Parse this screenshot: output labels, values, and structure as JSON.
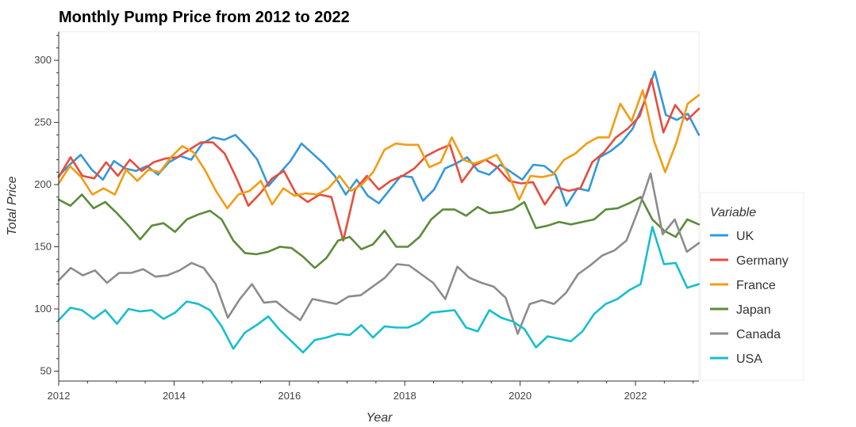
{
  "chart_data": {
    "type": "line",
    "title": "Monthly Pump Price from 2012 to 2022",
    "xlabel": "Year",
    "ylabel": "Total Price",
    "xlim": [
      2012,
      2023.1
    ],
    "ylim": [
      42,
      323
    ],
    "xticks": [
      2012,
      2014,
      2016,
      2018,
      2020,
      2022
    ],
    "yticks": [
      50,
      100,
      150,
      200,
      250,
      300
    ],
    "grid": false,
    "legend": {
      "title": "Variable",
      "placement": "right"
    },
    "x_start": 2012,
    "x_step": 0.25,
    "series": [
      {
        "name": "UK",
        "color": "#3498db",
        "values": [
          207,
          216,
          224,
          212,
          204,
          219,
          213,
          211,
          215,
          208,
          218,
          223,
          220,
          233,
          238,
          236,
          240,
          231,
          220,
          199,
          209,
          219,
          233,
          225,
          217,
          207,
          192,
          204,
          191,
          185,
          196,
          207,
          206,
          187,
          196,
          213,
          217,
          222,
          211,
          208,
          216,
          210,
          204,
          216,
          215,
          208,
          183,
          197,
          195,
          222,
          227,
          234,
          245,
          265,
          291,
          256,
          252,
          257,
          240
        ]
      },
      {
        "name": "Germany",
        "color": "#e74c3c",
        "values": [
          206,
          222,
          207,
          205,
          218,
          207,
          220,
          211,
          218,
          221,
          222,
          228,
          234,
          234,
          225,
          205,
          183,
          193,
          205,
          211,
          193,
          186,
          192,
          190,
          155,
          196,
          207,
          196,
          203,
          207,
          213,
          223,
          228,
          232,
          202,
          215,
          220,
          214,
          203,
          201,
          202,
          184,
          198,
          195,
          197,
          218,
          226,
          238,
          245,
          255,
          285,
          242,
          264,
          252,
          261
        ]
      },
      {
        "name": "France",
        "color": "#f39c12",
        "values": [
          201,
          215,
          206,
          192,
          197,
          192,
          212,
          203,
          212,
          210,
          222,
          231,
          226,
          212,
          195,
          181,
          192,
          195,
          203,
          184,
          197,
          191,
          193,
          192,
          197,
          207,
          195,
          200,
          210,
          228,
          233,
          232,
          232,
          214,
          218,
          238,
          220,
          217,
          220,
          224,
          209,
          188,
          207,
          206,
          208,
          220,
          225,
          233,
          238,
          238,
          265,
          251,
          276,
          235,
          210,
          234,
          265,
          272
        ]
      },
      {
        "name": "Japan",
        "color": "#5b8c3a",
        "values": [
          188,
          183,
          192,
          181,
          186,
          177,
          167,
          156,
          167,
          169,
          162,
          172,
          176,
          179,
          172,
          155,
          145,
          144,
          146,
          150,
          149,
          142,
          133,
          141,
          155,
          158,
          148,
          152,
          163,
          150,
          150,
          158,
          172,
          180,
          180,
          175,
          182,
          177,
          178,
          180,
          186,
          165,
          167,
          170,
          168,
          170,
          172,
          180,
          181,
          185,
          190,
          172,
          163,
          158,
          172,
          168
        ]
      },
      {
        "name": "Canada",
        "color": "#8c8c8c",
        "values": [
          123,
          133,
          127,
          131,
          121,
          129,
          129,
          132,
          126,
          127,
          131,
          137,
          133,
          120,
          93,
          108,
          120,
          105,
          106,
          98,
          91,
          108,
          106,
          104,
          110,
          111,
          118,
          125,
          136,
          135,
          128,
          121,
          108,
          134,
          125,
          121,
          118,
          109,
          80,
          104,
          107,
          104,
          113,
          128,
          135,
          143,
          147,
          155,
          180,
          209,
          160,
          172,
          146,
          153
        ]
      },
      {
        "name": "USA",
        "color": "#17becf",
        "values": [
          91,
          101,
          99,
          92,
          99,
          88,
          100,
          98,
          99,
          92,
          97,
          106,
          104,
          99,
          86,
          68,
          81,
          87,
          94,
          83,
          74,
          65,
          75,
          77,
          80,
          79,
          87,
          77,
          86,
          85,
          85,
          89,
          97,
          98,
          99,
          85,
          82,
          99,
          93,
          90,
          84,
          69,
          78,
          76,
          74,
          82,
          96,
          104,
          108,
          115,
          120,
          166,
          136,
          137,
          117,
          120
        ]
      }
    ]
  }
}
